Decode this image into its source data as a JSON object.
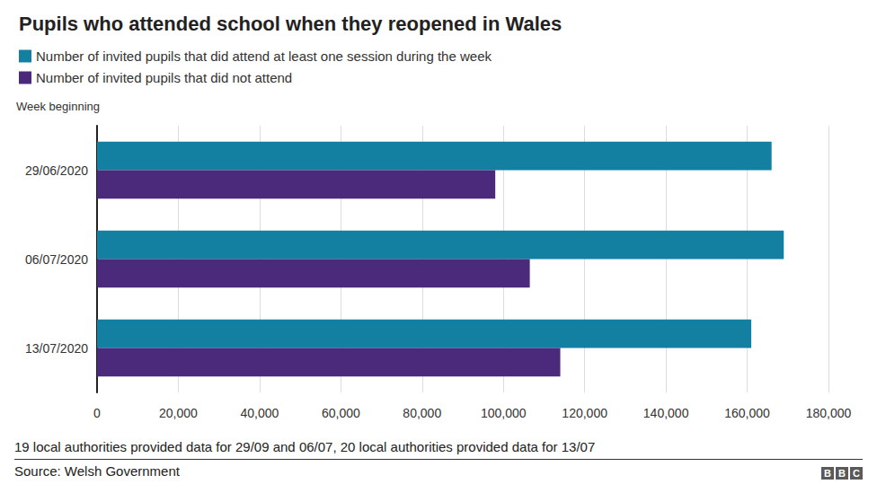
{
  "chart_data": {
    "type": "bar",
    "title": "Pupils who attended school when they reopened in Wales",
    "ylabel": "Week beginning",
    "note": "19 local authorities provided data for 29/09 and 06/07, 20 local authorities provided data for 13/07",
    "source": "Source: Welsh Government",
    "logo": "BBC",
    "orientation": "horizontal",
    "grid": true,
    "legend": "top-left",
    "categories": [
      "29/06/2020",
      "06/07/2020",
      "13/07/2020"
    ],
    "series": [
      {
        "name": "Number of invited pupils that did attend at least one session during the week",
        "color": "#1380a1",
        "values": [
          166000,
          169000,
          161000
        ]
      },
      {
        "name": "Number of invited pupils that did not attend",
        "color": "#4b2a7b",
        "values": [
          98000,
          106500,
          114000
        ]
      }
    ],
    "xlim": [
      0,
      180000
    ],
    "xticks": [
      0,
      {
        "value": 20000,
        "label": "20,000"
      },
      {
        "value": 40000,
        "label": "40,000"
      },
      {
        "value": 60000,
        "label": "60,000"
      },
      {
        "value": 80000,
        "label": "80,000"
      },
      {
        "value": 100000,
        "label": "100,000"
      },
      {
        "value": 120000,
        "label": "120,000"
      },
      {
        "value": 140000,
        "label": "140,000"
      },
      {
        "value": 160000,
        "label": "160,000"
      },
      {
        "value": 180000,
        "label": "180,000"
      }
    ]
  }
}
